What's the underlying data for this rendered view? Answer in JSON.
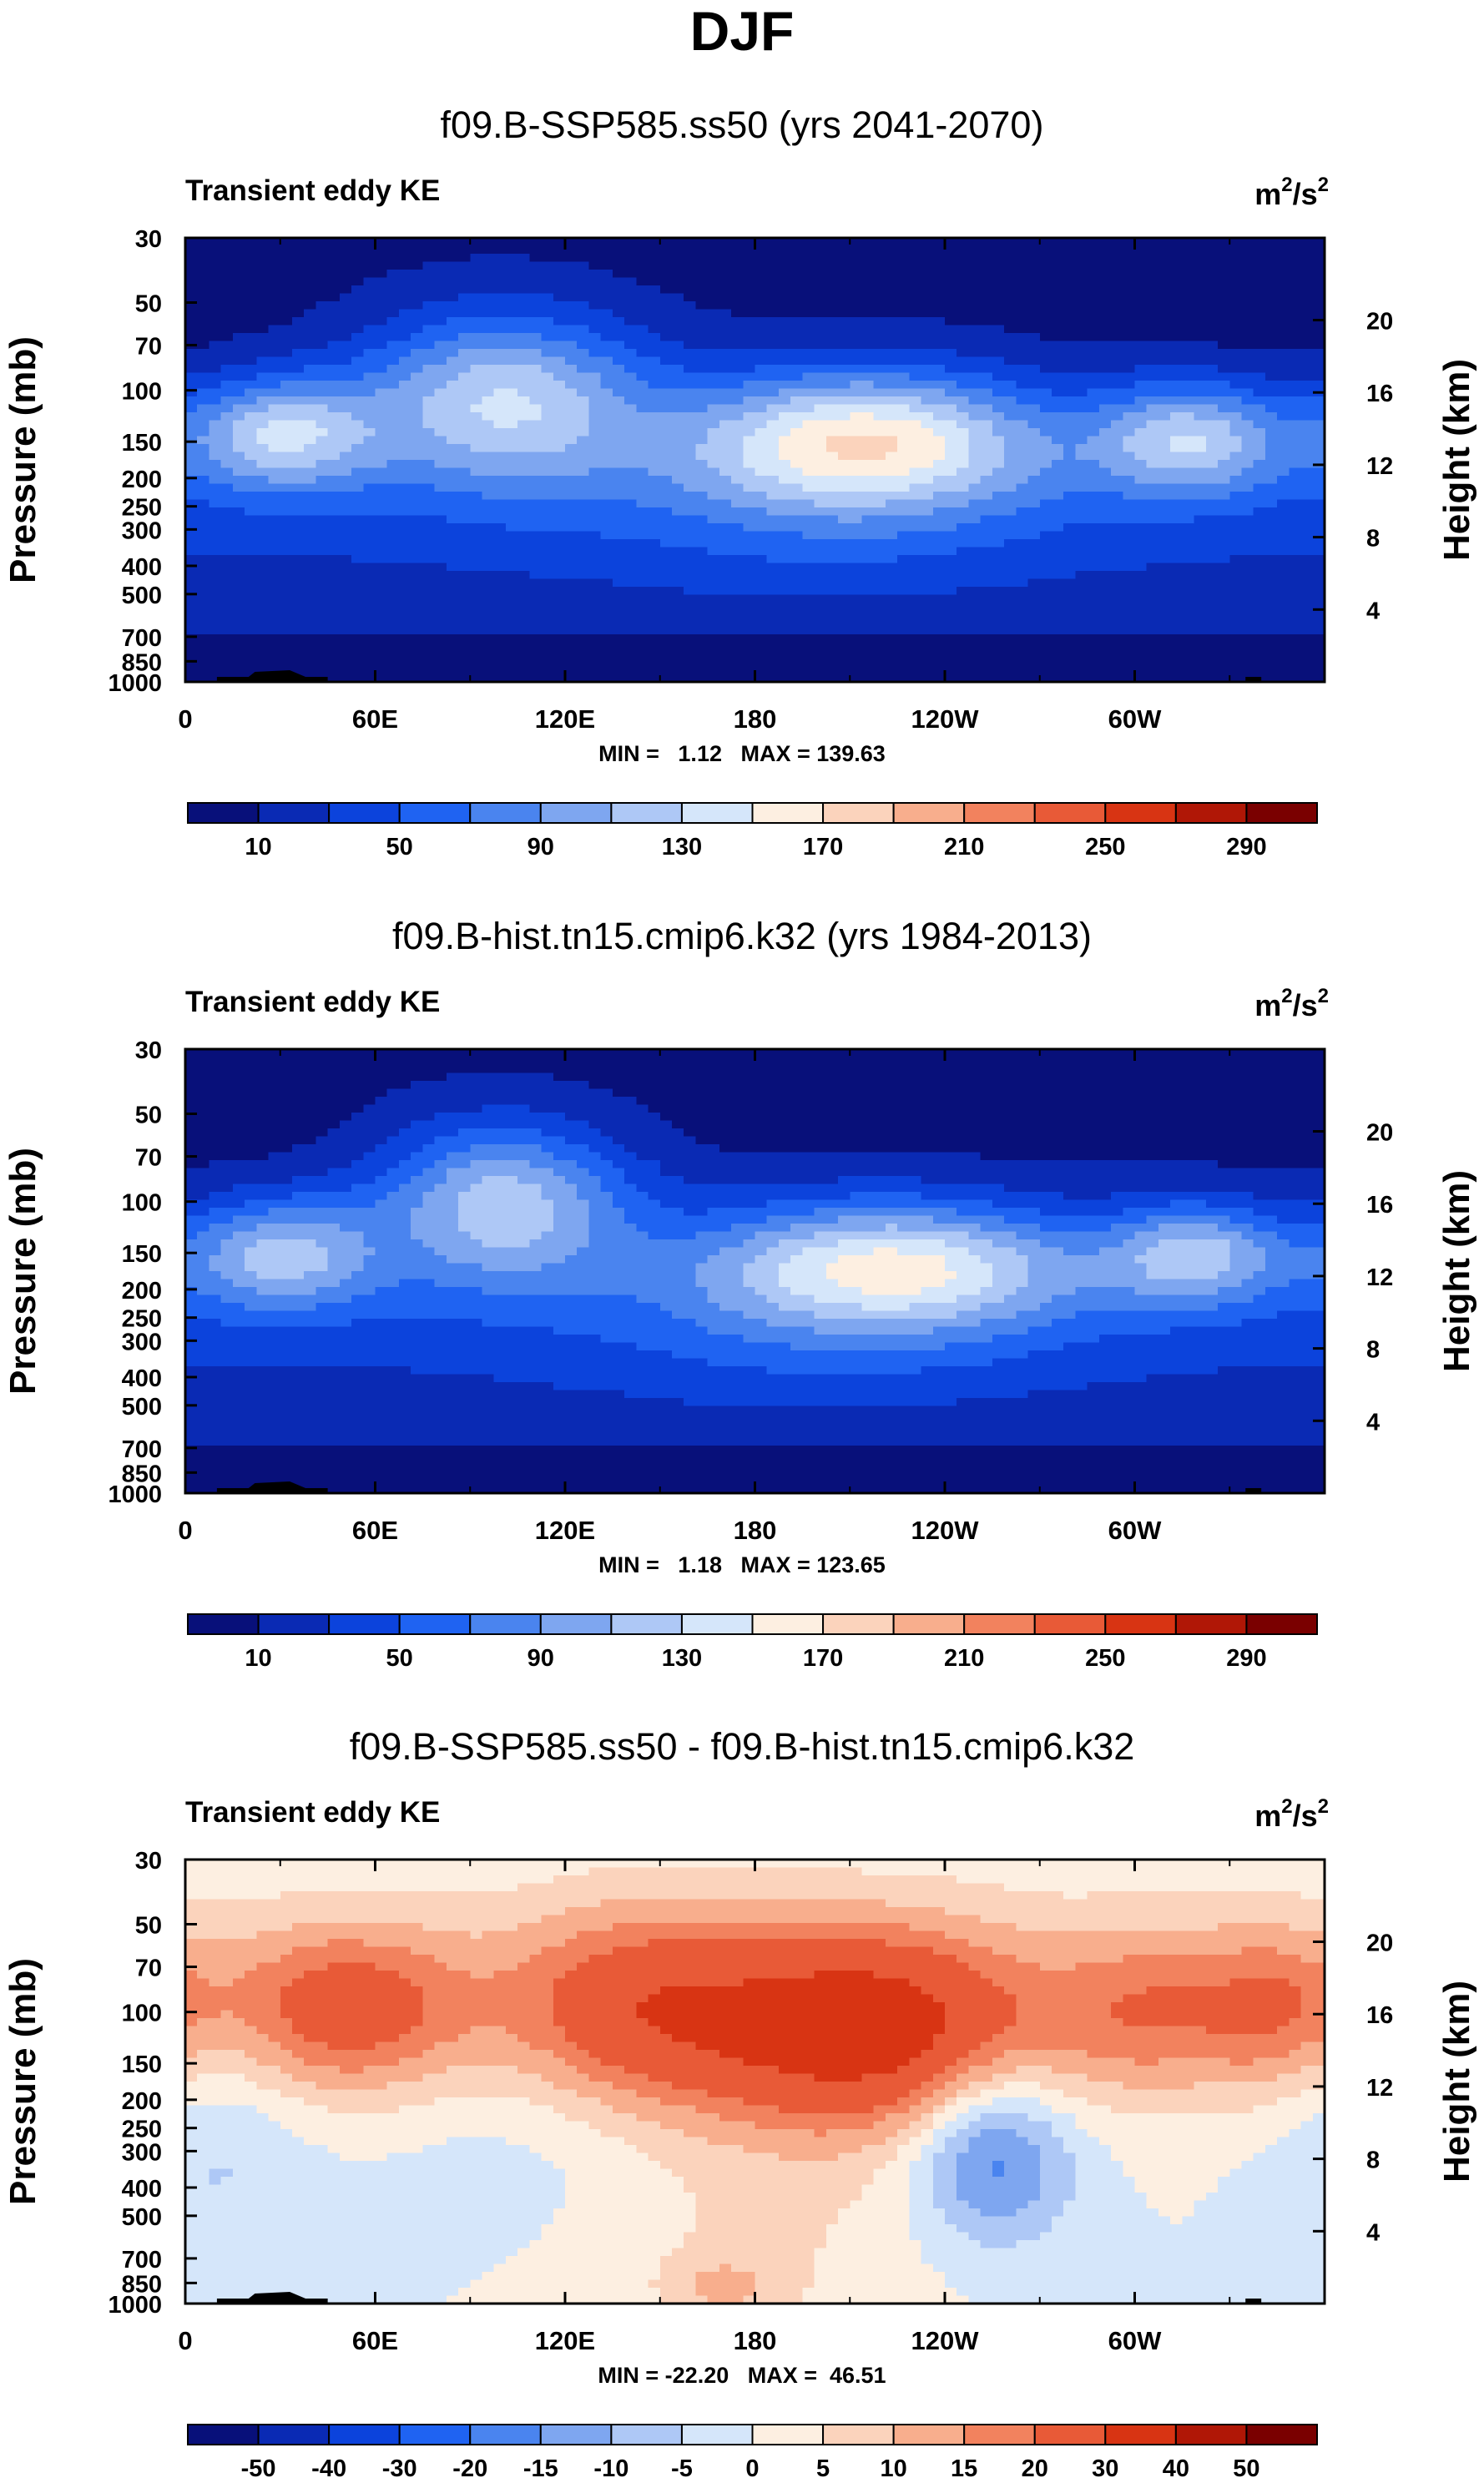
{
  "figure": {
    "title": "DJF"
  },
  "colors": {
    "abs_palette": [
      "#08107a",
      "#0a2ab4",
      "#0c43dc",
      "#1f63f2",
      "#4a84ef",
      "#7ea6f0",
      "#aec8f6",
      "#d5e6fa",
      "#fdefe1",
      "#fbd3bc",
      "#f8ae8d",
      "#f2825e",
      "#e85a37",
      "#d83413",
      "#b01706",
      "#7a0000"
    ],
    "diff_palette": [
      "#08107a",
      "#0a2ab4",
      "#0c43dc",
      "#1f63f2",
      "#4a84ef",
      "#7ea6f0",
      "#aec8f6",
      "#d5e6fa",
      "#fdefe1",
      "#fbd3bc",
      "#f8ae8d",
      "#f2825e",
      "#e85a37",
      "#d83413",
      "#b01706",
      "#7a0000"
    ]
  },
  "chart_data": [
    {
      "type": "heatmap",
      "title": "f09.B-SSP585.ss50 (yrs 2041-2070)",
      "left_label": "Transient eddy KE",
      "units_base": "m",
      "units_mid": "2",
      "units_slash": "/s",
      "units_exp": "2",
      "ylabel": "Pressure (mb)",
      "ylabel_right": "Height (km)",
      "x_ticks": [
        "0",
        "60E",
        "120E",
        "180",
        "120W",
        "60W"
      ],
      "x_tick_values": [
        0,
        60,
        120,
        180,
        240,
        300
      ],
      "xlim": [
        0,
        360
      ],
      "y_ticks": [
        "30",
        "50",
        "70",
        "100",
        "150",
        "200",
        "250",
        "300",
        "400",
        "500",
        "700",
        "850",
        "1000"
      ],
      "y_tick_values": [
        30,
        50,
        70,
        100,
        150,
        200,
        250,
        300,
        400,
        500,
        700,
        850,
        1000
      ],
      "ylim": [
        1000,
        30
      ],
      "height_ticks": [
        "20",
        "16",
        "12",
        "8",
        "4"
      ],
      "height_tick_values": [
        20,
        16,
        12,
        8,
        4
      ],
      "stats": "MIN =   1.12   MAX = 139.63",
      "min": 1.12,
      "max": 139.63,
      "colorbar_labels": [
        "10",
        "50",
        "90",
        "130",
        "170",
        "210",
        "250",
        "290"
      ],
      "levels": [
        10,
        30,
        50,
        70,
        90,
        110,
        130,
        150,
        170,
        190,
        210,
        230,
        250,
        270,
        290
      ],
      "field": "abs",
      "jets": [
        {
          "lon": 100,
          "p": 105,
          "amp": 118,
          "wlon": 32,
          "wp": 0.3
        },
        {
          "lon": 30,
          "p": 140,
          "amp": 106,
          "wlon": 22,
          "wp": 0.2
        },
        {
          "lon": 215,
          "p": 145,
          "amp": 130,
          "wlon": 40,
          "wp": 0.24
        },
        {
          "lon": 318,
          "p": 145,
          "amp": 102,
          "wlon": 22,
          "wp": 0.2
        }
      ]
    },
    {
      "type": "heatmap",
      "title": "f09.B-hist.tn15.cmip6.k32 (yrs 1984-2013)",
      "left_label": "Transient eddy KE",
      "units_base": "m",
      "units_mid": "2",
      "units_slash": "/s",
      "units_exp": "2",
      "ylabel": "Pressure (mb)",
      "ylabel_right": "Height (km)",
      "x_ticks": [
        "0",
        "60E",
        "120E",
        "180",
        "120W",
        "60W"
      ],
      "x_tick_values": [
        0,
        60,
        120,
        180,
        240,
        300
      ],
      "xlim": [
        0,
        360
      ],
      "y_ticks": [
        "30",
        "50",
        "70",
        "100",
        "150",
        "200",
        "250",
        "300",
        "400",
        "500",
        "700",
        "850",
        "1000"
      ],
      "y_tick_values": [
        30,
        50,
        70,
        100,
        150,
        200,
        250,
        300,
        400,
        500,
        700,
        850,
        1000
      ],
      "ylim": [
        1000,
        30
      ],
      "height_ticks": [
        "20",
        "16",
        "12",
        "8",
        "4"
      ],
      "height_tick_values": [
        20,
        16,
        12,
        8,
        4
      ],
      "stats": "MIN =   1.18   MAX = 123.65",
      "min": 1.18,
      "max": 123.65,
      "colorbar_labels": [
        "10",
        "50",
        "90",
        "130",
        "170",
        "210",
        "250",
        "290"
      ],
      "levels": [
        10,
        30,
        50,
        70,
        90,
        110,
        130,
        150,
        170,
        190,
        210,
        230,
        250,
        270,
        290
      ],
      "field": "abs",
      "jets": [
        {
          "lon": 100,
          "p": 100,
          "amp": 112,
          "wlon": 28,
          "wp": 0.28
        },
        {
          "lon": 30,
          "p": 150,
          "amp": 95,
          "wlon": 22,
          "wp": 0.2
        },
        {
          "lon": 225,
          "p": 165,
          "amp": 112,
          "wlon": 42,
          "wp": 0.22
        },
        {
          "lon": 320,
          "p": 150,
          "amp": 92,
          "wlon": 20,
          "wp": 0.18
        }
      ]
    },
    {
      "type": "heatmap",
      "title": "f09.B-SSP585.ss50 - f09.B-hist.tn15.cmip6.k32",
      "left_label": "Transient eddy KE",
      "units_base": "m",
      "units_mid": "2",
      "units_slash": "/s",
      "units_exp": "2",
      "ylabel": "Pressure (mb)",
      "ylabel_right": "Height (km)",
      "x_ticks": [
        "0",
        "60E",
        "120E",
        "180",
        "120W",
        "60W"
      ],
      "x_tick_values": [
        0,
        60,
        120,
        180,
        240,
        300
      ],
      "xlim": [
        0,
        360
      ],
      "y_ticks": [
        "30",
        "50",
        "70",
        "100",
        "150",
        "200",
        "250",
        "300",
        "400",
        "500",
        "700",
        "850",
        "1000"
      ],
      "y_tick_values": [
        30,
        50,
        70,
        100,
        150,
        200,
        250,
        300,
        400,
        500,
        700,
        850,
        1000
      ],
      "ylim": [
        1000,
        30
      ],
      "height_ticks": [
        "20",
        "16",
        "12",
        "8",
        "4"
      ],
      "height_tick_values": [
        20,
        16,
        12,
        8,
        4
      ],
      "stats": "MIN = -22.20   MAX =  46.51",
      "min": -22.2,
      "max": 46.51,
      "colorbar_labels": [
        "-50",
        "-40",
        "-30",
        "-20",
        "-15",
        "-10",
        "-5",
        "0",
        "5",
        "10",
        "15",
        "20",
        "30",
        "40",
        "50"
      ],
      "levels": [
        -50,
        -40,
        -30,
        -20,
        -15,
        -10,
        -5,
        0,
        5,
        10,
        15,
        20,
        30,
        40,
        50
      ],
      "field": "diff",
      "blobs": [
        {
          "lon": 50,
          "p": 100,
          "amp": 24,
          "wlon": 30,
          "wp": 0.22
        },
        {
          "lon": 140,
          "p": 100,
          "amp": 22,
          "wlon": 30,
          "wp": 0.26
        },
        {
          "lon": 215,
          "p": 115,
          "amp": 36,
          "wlon": 40,
          "wp": 0.26
        },
        {
          "lon": 305,
          "p": 100,
          "amp": 15,
          "wlon": 22,
          "wp": 0.22
        },
        {
          "lon": 345,
          "p": 100,
          "amp": 16,
          "wlon": 18,
          "wp": 0.22
        },
        {
          "lon": 255,
          "p": 300,
          "amp": -20,
          "wlon": 18,
          "wp": 0.22
        },
        {
          "lon": 10,
          "p": 260,
          "amp": -6,
          "wlon": 20,
          "wp": 0.35
        },
        {
          "lon": 120,
          "p": 260,
          "amp": -4,
          "wlon": 40,
          "wp": 0.3
        },
        {
          "lon": 175,
          "p": 600,
          "amp": 6,
          "wlon": 40,
          "wp": 0.35
        },
        {
          "lon": 170,
          "p": 880,
          "amp": 7,
          "wlon": 12,
          "wp": 0.08
        }
      ]
    }
  ]
}
